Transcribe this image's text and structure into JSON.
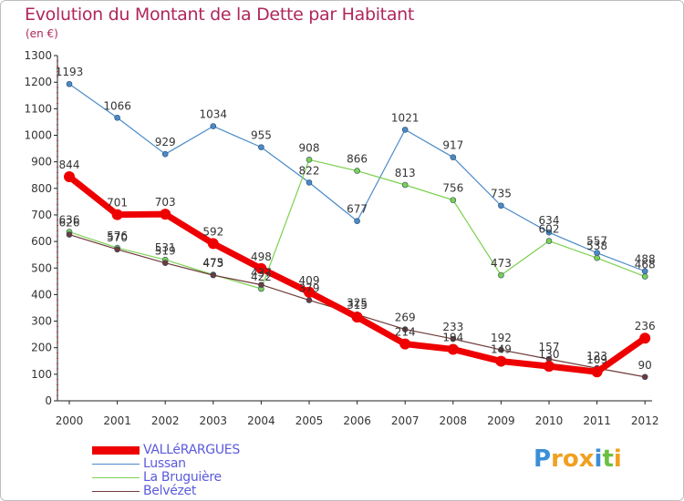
{
  "header": {
    "title": "Evolution du Montant de la Dette par Habitant",
    "unit": "(en €)"
  },
  "brand": {
    "letters": [
      "P",
      "r",
      "o",
      "x",
      "i",
      "t",
      "i"
    ],
    "colors": [
      "#3a8fd8",
      "#f0a020",
      "#f0a020",
      "#f0a020",
      "#3a8fd8",
      "#6cc040",
      "#f0a020"
    ]
  },
  "chart_data": {
    "type": "line",
    "title": "Evolution du Montant de la Dette par Habitant",
    "ylabel": "(en €)",
    "xlabel": "",
    "x": [
      "2000",
      "2001",
      "2002",
      "2003",
      "2004",
      "2005",
      "2006",
      "2007",
      "2008",
      "2009",
      "2010",
      "2011",
      "2012"
    ],
    "ylim": [
      0,
      1300
    ],
    "yticks": [
      "0",
      "100",
      "200",
      "300",
      "400",
      "500",
      "600",
      "700",
      "800",
      "900",
      "1000",
      "1100",
      "1200",
      "1300"
    ],
    "grid": false,
    "legend_position": "bottom-left",
    "series": [
      {
        "name": "VALLéRARGUES",
        "color": "#ee0000",
        "values": [
          844,
          701,
          703,
          592,
          498,
          409,
          315,
          214,
          194,
          149,
          130,
          109,
          236
        ],
        "labels": [
          "844",
          "701",
          "703",
          "592",
          "498",
          "409",
          "315",
          "214",
          "194",
          "149",
          "130",
          "109",
          "236"
        ]
      },
      {
        "name": "Lussan",
        "color": "#4a8ac8",
        "values": [
          1193,
          1066,
          929,
          1034,
          955,
          822,
          677,
          1021,
          917,
          735,
          634,
          557,
          488
        ],
        "labels": [
          "1193",
          "1066",
          "929",
          "1034",
          "955",
          "822",
          "677",
          "1021",
          "917",
          "735",
          "634",
          "557",
          "488"
        ]
      },
      {
        "name": "La Bruguière",
        "color": "#7cd050",
        "values": [
          636,
          576,
          531,
          475,
          422,
          908,
          866,
          813,
          756,
          473,
          602,
          538,
          468
        ],
        "labels": [
          "636",
          "576",
          "531",
          "475",
          "422",
          "908",
          "866",
          "813",
          "756",
          "473",
          "602",
          "538",
          "468"
        ]
      },
      {
        "name": "Belvézet",
        "color": "#703a3a",
        "values": [
          626,
          570,
          519,
          473,
          437,
          379,
          325,
          269,
          233,
          192,
          157,
          123,
          90
        ],
        "labels": [
          "626",
          "570",
          "519",
          "473",
          "437",
          "379",
          "325",
          "269",
          "233",
          "192",
          "157",
          "123",
          "90"
        ]
      }
    ]
  }
}
